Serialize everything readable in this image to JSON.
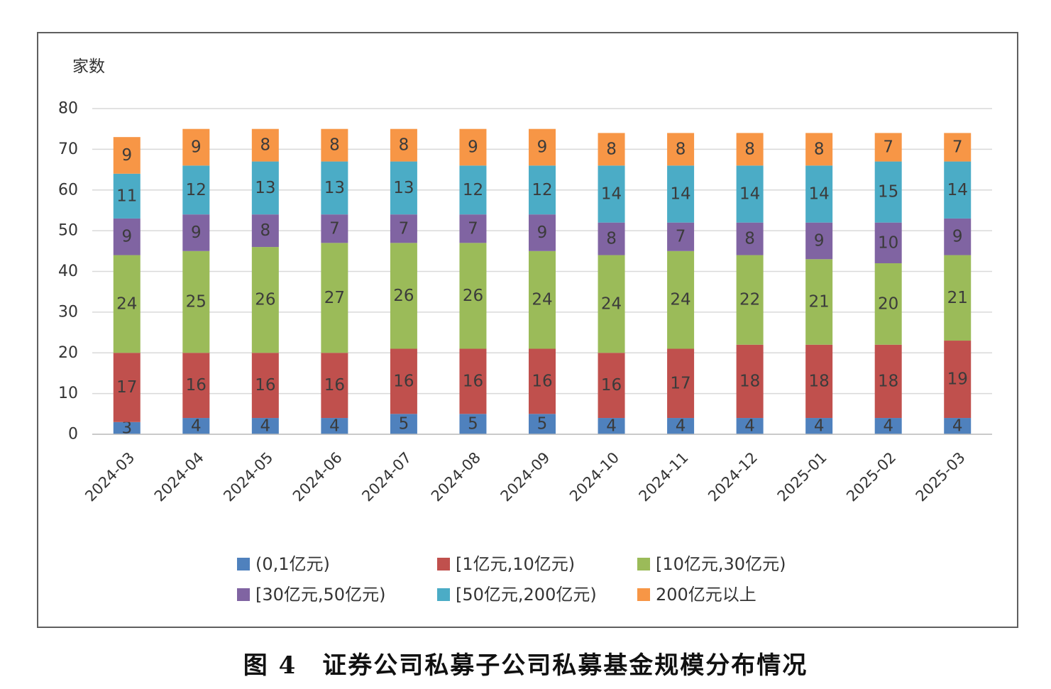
{
  "chart_data": {
    "type": "bar",
    "stacked": true,
    "ylabel": "家数",
    "xlabel": "",
    "ylim": [
      0,
      80
    ],
    "yticks": [
      0,
      10,
      20,
      30,
      40,
      50,
      60,
      70,
      80
    ],
    "grid": true,
    "legend_position": "bottom",
    "categories": [
      "2024-03",
      "2024-04",
      "2024-05",
      "2024-06",
      "2024-07",
      "2024-08",
      "2024-09",
      "2024-10",
      "2024-11",
      "2024-12",
      "2025-01",
      "2025-02",
      "2025-03"
    ],
    "series": [
      {
        "name": "(0,1亿元)",
        "color": "#4f81bd",
        "values": [
          3,
          4,
          4,
          4,
          5,
          5,
          5,
          4,
          4,
          4,
          4,
          4,
          4
        ]
      },
      {
        "name": "[1亿元,10亿元)",
        "color": "#c0504d",
        "values": [
          17,
          16,
          16,
          16,
          16,
          16,
          16,
          16,
          17,
          18,
          18,
          18,
          19
        ]
      },
      {
        "name": "[10亿元,30亿元)",
        "color": "#9bbb59",
        "values": [
          24,
          25,
          26,
          27,
          26,
          26,
          24,
          24,
          24,
          22,
          21,
          20,
          21
        ]
      },
      {
        "name": "[30亿元,50亿元)",
        "color": "#8064a2",
        "values": [
          9,
          9,
          8,
          7,
          7,
          7,
          9,
          8,
          7,
          8,
          9,
          10,
          9
        ]
      },
      {
        "name": "[50亿元,200亿元)",
        "color": "#4bacc6",
        "values": [
          11,
          12,
          13,
          13,
          13,
          12,
          12,
          14,
          14,
          14,
          14,
          15,
          14
        ]
      },
      {
        "name": "200亿元以上",
        "color": "#f79646",
        "values": [
          9,
          9,
          8,
          8,
          8,
          9,
          9,
          8,
          8,
          8,
          8,
          7,
          7
        ]
      }
    ]
  },
  "caption": {
    "figure_no": "图 4",
    "title": "证券公司私募子公司私募基金规模分布情况"
  }
}
